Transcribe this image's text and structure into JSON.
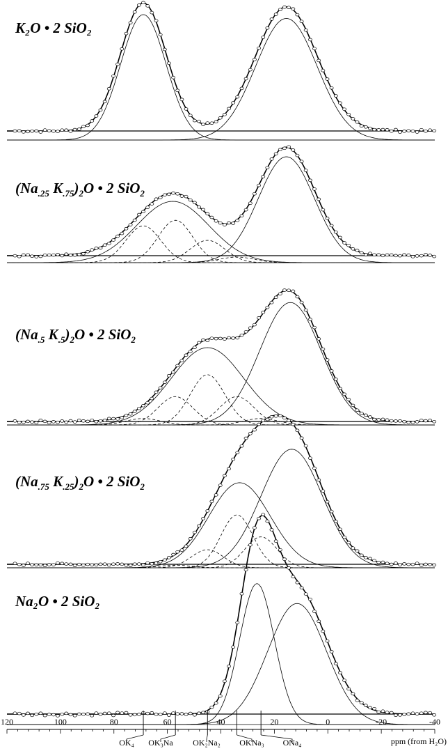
{
  "chart_data": {
    "type": "line",
    "xlabel": "ppm (from H₂O)",
    "xlim": [
      120,
      -40
    ],
    "x_tick_labels": [
      {
        "x": 120,
        "label": "120"
      },
      {
        "x": 100,
        "label": "100"
      },
      {
        "x": 80,
        "label": "80"
      },
      {
        "x": 60,
        "label": "60"
      },
      {
        "x": 40,
        "label": "40"
      },
      {
        "x": 20,
        "label": "20"
      },
      {
        "x": 0,
        "label": "0"
      },
      {
        "x": -20,
        "label": "-20"
      },
      {
        "x": -40,
        "label": "-40"
      }
    ],
    "site_markers": [
      {
        "x": 69,
        "label": "OK₄"
      },
      {
        "x": 57,
        "label": "OK₃Na"
      },
      {
        "x": 45,
        "label": "OK₂Na₂"
      },
      {
        "x": 34,
        "label": "OKNa₃"
      },
      {
        "x": 25,
        "label": "ONa₄"
      }
    ],
    "panels": [
      {
        "title": "K₂O • 2 SiO₂",
        "peaks": [
          {
            "center": 69,
            "amplitude": 1.0,
            "width": 8.5,
            "style": "solid"
          },
          {
            "center": 15.5,
            "amplitude": 0.97,
            "width": 11.5,
            "style": "solid"
          }
        ]
      },
      {
        "title": "(Na.25 K.75)2O • 2 SiO2",
        "title_parts": {
          "pre": "(Na",
          "sub1": ".25",
          "mid": " K",
          "sub2": ".75",
          "post": ")",
          "sub3": "2",
          "tail": "O • 2 SiO",
          "sub4": "2"
        },
        "peaks": [
          {
            "center": 58,
            "amplitude": 0.55,
            "width": 13.5,
            "style": "solid"
          },
          {
            "center": 15.5,
            "amplitude": 0.95,
            "width": 10.5,
            "style": "solid"
          },
          {
            "center": 69,
            "amplitude": 0.33,
            "width": 6.5,
            "style": "dashed"
          },
          {
            "center": 57,
            "amplitude": 0.38,
            "width": 6.5,
            "style": "dashed"
          },
          {
            "center": 45,
            "amplitude": 0.2,
            "width": 6.5,
            "style": "dashed"
          },
          {
            "center": 34,
            "amplitude": 0.05,
            "width": 6.5,
            "style": "dashed"
          }
        ]
      },
      {
        "title": "(Na.5 K.5)2O • 2 SiO2",
        "title_parts": {
          "pre": "(Na",
          "sub1": ".5",
          "mid": " K",
          "sub2": ".5",
          "post": ")",
          "sub3": "2",
          "tail": "O • 2 SiO",
          "sub4": "2"
        },
        "peaks": [
          {
            "center": 45,
            "amplitude": 0.6,
            "width": 13.5,
            "style": "solid"
          },
          {
            "center": 14,
            "amplitude": 0.95,
            "width": 11.5,
            "style": "solid"
          },
          {
            "center": 69,
            "amplitude": 0.05,
            "width": 6.5,
            "style": "dashed"
          },
          {
            "center": 57,
            "amplitude": 0.22,
            "width": 6.5,
            "style": "dashed"
          },
          {
            "center": 45,
            "amplitude": 0.39,
            "width": 6.5,
            "style": "dashed"
          },
          {
            "center": 34,
            "amplitude": 0.22,
            "width": 6.5,
            "style": "dashed"
          },
          {
            "center": 25,
            "amplitude": 0.05,
            "width": 6.5,
            "style": "dashed"
          }
        ]
      },
      {
        "title": "(Na.75 K.25)2O • 2 SiO2",
        "title_parts": {
          "pre": "(Na",
          "sub1": ".75",
          "mid": " K",
          "sub2": ".25",
          "post": ")",
          "sub3": "2",
          "tail": "O • 2 SiO",
          "sub4": "2"
        },
        "peaks": [
          {
            "center": 33,
            "amplitude": 0.66,
            "width": 11.5,
            "style": "solid"
          },
          {
            "center": 13.5,
            "amplitude": 0.92,
            "width": 11.5,
            "style": "solid"
          },
          {
            "center": 45,
            "amplitude": 0.14,
            "width": 6.0,
            "style": "dashed"
          },
          {
            "center": 34,
            "amplitude": 0.41,
            "width": 6.0,
            "style": "dashed"
          },
          {
            "center": 25,
            "amplitude": 0.24,
            "width": 6.0,
            "style": "dashed"
          },
          {
            "center": 57,
            "amplitude": 0.02,
            "width": 6.0,
            "style": "dashed"
          }
        ]
      },
      {
        "title": "Na₂O • 2 SiO₂",
        "peaks": [
          {
            "center": 26.5,
            "amplitude": 0.85,
            "width": 6.5,
            "style": "solid"
          },
          {
            "center": 11.5,
            "amplitude": 0.73,
            "width": 11.0,
            "style": "solid"
          }
        ]
      }
    ]
  }
}
